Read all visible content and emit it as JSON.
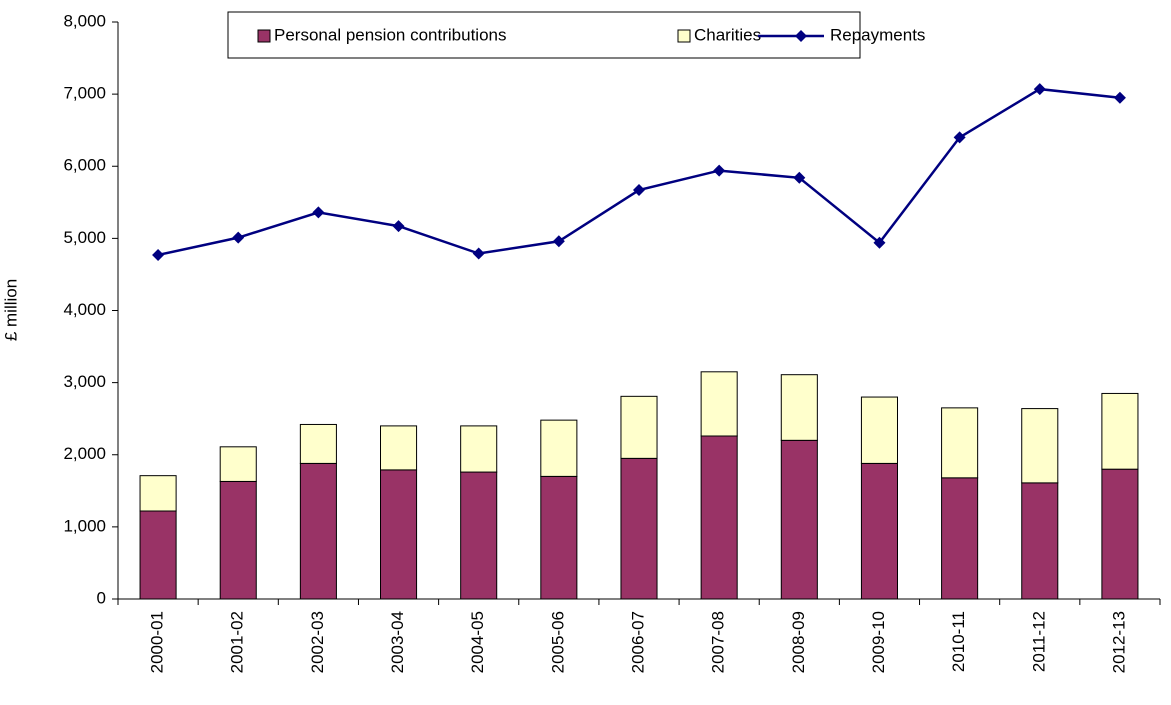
{
  "chart_data": {
    "type": "bar",
    "stacked": true,
    "y_label": "£ million",
    "categories": [
      "2000-01",
      "2001-02",
      "2002-03",
      "2003-04",
      "2004-05",
      "2005-06",
      "2006-07",
      "2007-08",
      "2008-09",
      "2009-10",
      "2010-11",
      "2011-12",
      "2012-13"
    ],
    "series": [
      {
        "name": "Personal pension contributions",
        "type": "bar",
        "color": "#993366",
        "values": [
          1220,
          1630,
          1880,
          1790,
          1760,
          1700,
          1950,
          2260,
          2200,
          1880,
          1680,
          1610,
          1800
        ]
      },
      {
        "name": "Charities",
        "type": "bar",
        "color": "#ffffcc",
        "values": [
          490,
          480,
          540,
          610,
          640,
          780,
          860,
          890,
          910,
          920,
          970,
          1030,
          1050
        ]
      },
      {
        "name": "Repayments",
        "type": "line",
        "color": "#000080",
        "values": [
          4770,
          5010,
          5360,
          5170,
          4790,
          4960,
          5670,
          5940,
          5840,
          4940,
          6400,
          7070,
          6950
        ]
      }
    ],
    "ylim": [
      0,
      8000
    ],
    "yticks": [
      0,
      {
        "value": 1000,
        "label": "1,000"
      },
      {
        "value": 2000,
        "label": "2,000"
      },
      {
        "value": 3000,
        "label": "3,000"
      },
      {
        "value": 4000,
        "label": "4,000"
      },
      {
        "value": 5000,
        "label": "5,000"
      },
      {
        "value": 6000,
        "label": "6,000"
      },
      {
        "value": 7000,
        "label": "7,000"
      },
      {
        "value": 8000,
        "label": "8,000"
      }
    ],
    "grid": false,
    "legend": "top"
  }
}
